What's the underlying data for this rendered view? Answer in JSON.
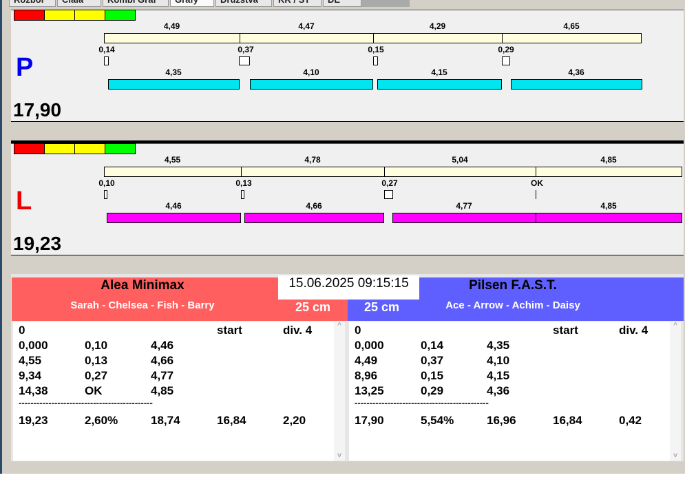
{
  "tabs": [
    "Rozbor",
    "Čiala",
    "Kombi Graf",
    "Grafy",
    "Družstva",
    "KR / ST",
    "DE"
  ],
  "colors": {
    "red": "#ff0000",
    "yellow": "#ffff00",
    "green": "#00ff00",
    "beige": "#ffffe0",
    "cyan": "#00e5ee",
    "magenta": "#ff00ff",
    "team_left": "#ff5f5f",
    "team_right": "#5f5fff"
  },
  "lanes": [
    {
      "side": "P",
      "side_color": "#0000ee",
      "total": "17,90",
      "bar_color": "#00e5ee",
      "top": [
        "4,49",
        "4,47",
        "4,29",
        "4,65"
      ],
      "reaction": [
        "0,14",
        "0,37",
        "0,15",
        "0,29"
      ],
      "bottom": [
        "4,35",
        "4,10",
        "4,15",
        "4,36"
      ]
    },
    {
      "side": "L",
      "side_color": "#ee0000",
      "total": "19,23",
      "bar_color": "#ff00ff",
      "top": [
        "4,55",
        "4,78",
        "5,04",
        "4,85"
      ],
      "reaction": [
        "0,10",
        "0,13",
        "0,27",
        "OK"
      ],
      "bottom": [
        "4,46",
        "4,66",
        "4,77",
        "4,85"
      ]
    }
  ],
  "datetime": "15.06.2025 09:15:15",
  "teams": [
    {
      "name": "Alea Minimax",
      "players": "Sarah - Chelsea - Fish - Barry",
      "distance": "25 cm",
      "header": [
        "0",
        "",
        "",
        "start",
        "div. 4"
      ],
      "rows": [
        [
          "0,000",
          "0,10",
          "4,46"
        ],
        [
          "4,55",
          "0,13",
          "4,66"
        ],
        [
          "9,34",
          "0,27",
          "4,77"
        ],
        [
          "14,38",
          "OK",
          "4,85"
        ]
      ],
      "divider": "---------------------------------------------",
      "summary": [
        "19,23",
        "2,60%",
        "18,74",
        "16,84",
        "2,20"
      ]
    },
    {
      "name": "Pilsen F.A.S.T.",
      "players": "Ace - Arrow - Achim - Daisy",
      "distance": "25 cm",
      "header": [
        "0",
        "",
        "",
        "start",
        "div. 4"
      ],
      "rows": [
        [
          "0,000",
          "0,14",
          "4,35"
        ],
        [
          "4,49",
          "0,37",
          "4,10"
        ],
        [
          "8,96",
          "0,15",
          "4,15"
        ],
        [
          "13,25",
          "0,29",
          "4,36"
        ]
      ],
      "divider": "---------------------------------------------",
      "summary": [
        "17,90",
        "5,54%",
        "16,96",
        "16,84",
        "0,42"
      ]
    }
  ]
}
